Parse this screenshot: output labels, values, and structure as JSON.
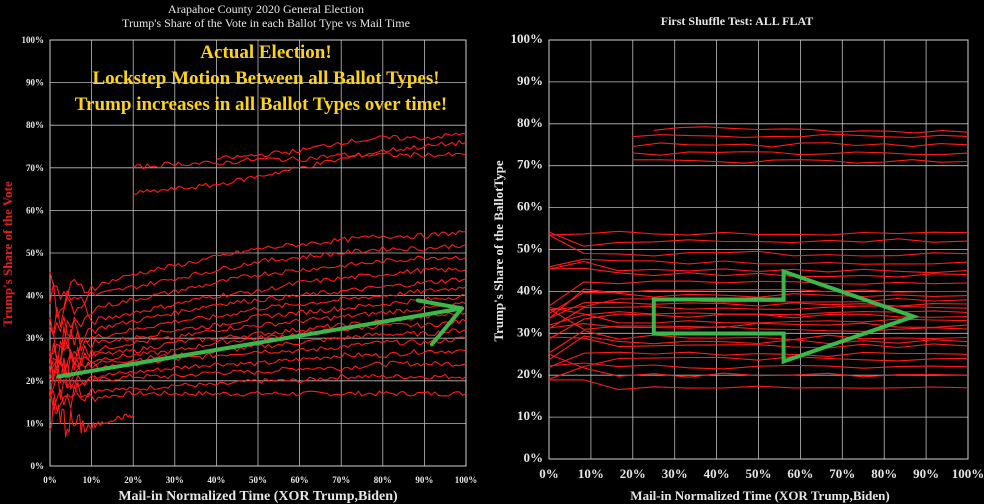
{
  "chart_data": [
    {
      "type": "line",
      "title_line1": "Arapahoe County 2020 General Election",
      "title_line2": "Trump's Share of the Vote in each Ballot Type vs Mail Time",
      "xlabel": "Mail-in Normalized Time (XOR Trump,Biden)",
      "ylabel": "Trump's Share of the Vote",
      "xlim": [
        0,
        100
      ],
      "ylim": [
        0,
        100
      ],
      "xticks": [
        "0%",
        "10%",
        "20%",
        "30%",
        "40%",
        "50%",
        "60%",
        "70%",
        "80%",
        "90%",
        "100%"
      ],
      "yticks": [
        "0%",
        "10%",
        "20%",
        "30%",
        "40%",
        "50%",
        "60%",
        "70%",
        "80%",
        "90%",
        "100%"
      ],
      "grid": true,
      "annotation": [
        "Actual Election!",
        "Lockstep Motion Between all Ballot Types!",
        "Trump increases in all Ballot Types over time!"
      ],
      "arrow": {
        "from": [
          2,
          21
        ],
        "to": [
          99,
          37
        ],
        "color": "#3cb84a"
      },
      "series": [
        {
          "x": [
            0,
            10,
            20,
            30,
            40,
            50,
            60,
            70,
            80,
            90,
            100
          ],
          "values": [
            17,
            16,
            17,
            17,
            17,
            17,
            17,
            17,
            17,
            17,
            17
          ]
        },
        {
          "x": [
            0,
            10,
            20,
            30,
            40,
            50,
            60,
            70,
            80,
            90,
            100
          ],
          "values": [
            18,
            18,
            18,
            19,
            19,
            20,
            20,
            21,
            21,
            21,
            21
          ]
        },
        {
          "x": [
            0,
            10,
            20,
            30,
            40,
            50,
            60,
            70,
            80,
            90,
            100
          ],
          "values": [
            20,
            20,
            21,
            21,
            22,
            22,
            23,
            23,
            24,
            24,
            24
          ]
        },
        {
          "x": [
            0,
            10,
            20,
            30,
            40,
            50,
            60,
            70,
            80,
            90,
            100
          ],
          "values": [
            21,
            21,
            22,
            23,
            24,
            24,
            25,
            26,
            26,
            27,
            27
          ]
        },
        {
          "x": [
            0,
            10,
            20,
            30,
            40,
            50,
            60,
            70,
            80,
            90,
            100
          ],
          "values": [
            22,
            23,
            24,
            25,
            26,
            27,
            27,
            28,
            29,
            29,
            30
          ]
        },
        {
          "x": [
            0,
            10,
            20,
            30,
            40,
            50,
            60,
            70,
            80,
            90,
            100
          ],
          "values": [
            23,
            24,
            25,
            26,
            27,
            28,
            29,
            30,
            31,
            31,
            32
          ]
        },
        {
          "x": [
            0,
            10,
            20,
            30,
            40,
            50,
            60,
            70,
            80,
            90,
            100
          ],
          "values": [
            24,
            25,
            26,
            27,
            29,
            30,
            31,
            32,
            33,
            33,
            34
          ]
        },
        {
          "x": [
            0,
            10,
            20,
            30,
            40,
            50,
            60,
            70,
            80,
            90,
            100
          ],
          "values": [
            25,
            26,
            27,
            29,
            30,
            31,
            32,
            33,
            34,
            35,
            36
          ]
        },
        {
          "x": [
            0,
            10,
            20,
            30,
            40,
            50,
            60,
            70,
            80,
            90,
            100
          ],
          "values": [
            26,
            27,
            29,
            30,
            32,
            33,
            34,
            35,
            36,
            37,
            38
          ]
        },
        {
          "x": [
            0,
            10,
            20,
            30,
            40,
            50,
            60,
            70,
            80,
            90,
            100
          ],
          "values": [
            27,
            29,
            30,
            32,
            33,
            35,
            36,
            37,
            38,
            39,
            40
          ]
        },
        {
          "x": [
            0,
            10,
            20,
            30,
            40,
            50,
            60,
            70,
            80,
            90,
            100
          ],
          "values": [
            28,
            30,
            32,
            34,
            35,
            37,
            38,
            39,
            40,
            41,
            42
          ]
        },
        {
          "x": [
            0,
            10,
            20,
            30,
            40,
            50,
            60,
            70,
            80,
            90,
            100
          ],
          "values": [
            30,
            32,
            34,
            36,
            38,
            39,
            40,
            41,
            42,
            43,
            44
          ]
        },
        {
          "x": [
            0,
            10,
            20,
            30,
            40,
            50,
            60,
            70,
            80,
            90,
            100
          ],
          "values": [
            32,
            34,
            36,
            38,
            40,
            41,
            43,
            44,
            45,
            46,
            46
          ]
        },
        {
          "x": [
            0,
            10,
            20,
            30,
            40,
            50,
            60,
            70,
            80,
            90,
            100
          ],
          "values": [
            35,
            37,
            39,
            41,
            43,
            45,
            46,
            47,
            48,
            49,
            49
          ]
        },
        {
          "x": [
            0,
            10,
            20,
            30,
            40,
            50,
            60,
            70,
            80,
            90,
            100
          ],
          "values": [
            38,
            40,
            42,
            44,
            46,
            48,
            49,
            50,
            51,
            51,
            52
          ]
        },
        {
          "x": [
            0,
            10,
            20,
            30,
            40,
            50,
            60,
            70,
            80,
            90,
            100
          ],
          "values": [
            40,
            42,
            45,
            47,
            49,
            51,
            52,
            53,
            54,
            54,
            55
          ]
        },
        {
          "x": [
            20,
            30,
            40,
            50,
            60,
            70,
            80,
            90,
            100
          ],
          "values": [
            70,
            71,
            71,
            72,
            72,
            73,
            73,
            73,
            73
          ]
        },
        {
          "x": [
            20,
            30,
            40,
            50,
            60,
            70,
            80,
            90,
            100
          ],
          "values": [
            64,
            65,
            66,
            68,
            70,
            72,
            74,
            75,
            76
          ]
        },
        {
          "x": [
            40,
            50,
            60,
            70,
            80,
            90,
            100
          ],
          "values": [
            72,
            73,
            74,
            76,
            77,
            77,
            78
          ]
        },
        {
          "x": [
            0,
            5,
            10,
            15,
            20
          ],
          "values": [
            12,
            10,
            9,
            11,
            12
          ]
        }
      ]
    },
    {
      "type": "line",
      "title": "First Shuffle Test: ALL FLAT",
      "xlabel": "Mail-in Normalized Time (XOR Trump,Biden)",
      "ylabel": "Trump's  Share  of  the BallotType",
      "xlim": [
        0,
        100
      ],
      "ylim": [
        0,
        100
      ],
      "xticks": [
        "0%",
        "10%",
        "20%",
        "30%",
        "40%",
        "50%",
        "60%",
        "70%",
        "80%",
        "90%",
        "100%"
      ],
      "yticks": [
        "0%",
        "10%",
        "20%",
        "30%",
        "40%",
        "50%",
        "60%",
        "70%",
        "80%",
        "90%",
        "100%"
      ],
      "grid": true,
      "arrow": {
        "from": [
          25,
          34
        ],
        "to": [
          87,
          34
        ],
        "color": "#3cb84a"
      },
      "series": [
        {
          "x": [
            0,
            100
          ],
          "values": [
            17,
            17
          ]
        },
        {
          "x": [
            0,
            100
          ],
          "values": [
            20,
            20
          ]
        },
        {
          "x": [
            0,
            100
          ],
          "values": [
            22,
            22
          ]
        },
        {
          "x": [
            0,
            100
          ],
          "values": [
            24,
            24
          ]
        },
        {
          "x": [
            0,
            100
          ],
          "values": [
            25,
            25
          ]
        },
        {
          "x": [
            0,
            100
          ],
          "values": [
            27,
            27
          ]
        },
        {
          "x": [
            0,
            100
          ],
          "values": [
            28,
            28
          ]
        },
        {
          "x": [
            0,
            100
          ],
          "values": [
            29,
            29
          ]
        },
        {
          "x": [
            0,
            100
          ],
          "values": [
            31,
            31
          ]
        },
        {
          "x": [
            0,
            100
          ],
          "values": [
            32,
            32
          ]
        },
        {
          "x": [
            0,
            100
          ],
          "values": [
            33,
            33
          ]
        },
        {
          "x": [
            0,
            100
          ],
          "values": [
            34,
            34
          ]
        },
        {
          "x": [
            0,
            100
          ],
          "values": [
            35,
            35
          ]
        },
        {
          "x": [
            0,
            100
          ],
          "values": [
            36,
            36
          ]
        },
        {
          "x": [
            0,
            100
          ],
          "values": [
            37,
            37
          ]
        },
        {
          "x": [
            0,
            100
          ],
          "values": [
            38,
            38
          ]
        },
        {
          "x": [
            0,
            100
          ],
          "values": [
            39,
            39
          ]
        },
        {
          "x": [
            0,
            100
          ],
          "values": [
            40,
            40
          ]
        },
        {
          "x": [
            0,
            100
          ],
          "values": [
            42,
            42
          ]
        },
        {
          "x": [
            0,
            100
          ],
          "values": [
            44,
            44
          ]
        },
        {
          "x": [
            0,
            100
          ],
          "values": [
            45,
            45
          ]
        },
        {
          "x": [
            0,
            100
          ],
          "values": [
            47,
            47
          ]
        },
        {
          "x": [
            0,
            100
          ],
          "values": [
            49,
            49
          ]
        },
        {
          "x": [
            0,
            100
          ],
          "values": [
            52,
            52
          ]
        },
        {
          "x": [
            0,
            100
          ],
          "values": [
            54,
            54
          ]
        },
        {
          "x": [
            20,
            100
          ],
          "values": [
            71,
            71
          ]
        },
        {
          "x": [
            20,
            100
          ],
          "values": [
            73,
            73
          ]
        },
        {
          "x": [
            20,
            100
          ],
          "values": [
            75,
            75
          ]
        },
        {
          "x": [
            20,
            100
          ],
          "values": [
            77,
            77
          ]
        },
        {
          "x": [
            25,
            100
          ],
          "values": [
            79,
            78
          ]
        }
      ]
    }
  ]
}
